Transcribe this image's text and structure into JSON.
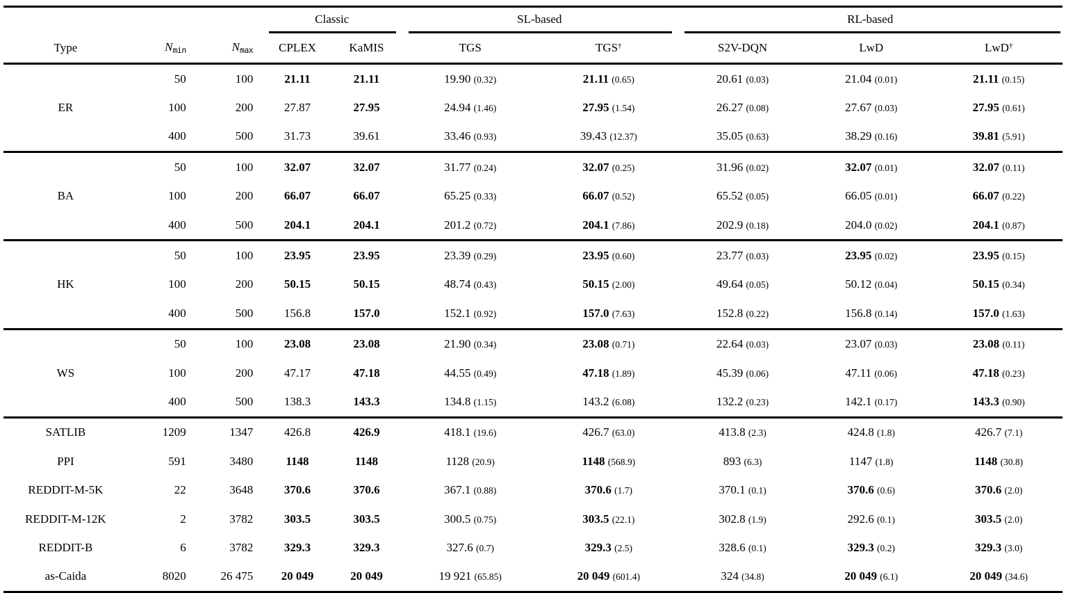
{
  "table": {
    "groups": [
      {
        "label": "Classic"
      },
      {
        "label": "SL-based"
      },
      {
        "label": "RL-based"
      }
    ],
    "headers": {
      "type": "Type",
      "nmin": {
        "base": "N",
        "sub": "min"
      },
      "nmax": {
        "base": "N",
        "sub": "max"
      }
    },
    "method_headers": [
      {
        "label": "CPLEX"
      },
      {
        "label": "KaMIS"
      },
      {
        "label": "TGS"
      },
      {
        "label": "TGS",
        "sup": "†"
      },
      {
        "label": "S2V-DQN"
      },
      {
        "label": "LwD"
      },
      {
        "label": "LwD",
        "sup": "†"
      }
    ],
    "method_keys": [
      "cplex",
      "kamis",
      "tgs",
      "tgs-dagger",
      "s2v-dqn",
      "lwd",
      "lwd-dagger"
    ],
    "sections": [
      {
        "label": "ER",
        "rows": [
          {
            "nmin": "50",
            "nmax": "100",
            "cells": [
              {
                "v": "21.11",
                "b": true
              },
              {
                "v": "21.11",
                "b": true
              },
              {
                "v": "19.90",
                "s": "0.32"
              },
              {
                "v": "21.11",
                "s": "0.65",
                "b": true
              },
              {
                "v": "20.61",
                "s": "0.03"
              },
              {
                "v": "21.04",
                "s": "0.01"
              },
              {
                "v": "21.11",
                "s": "0.15",
                "b": true
              }
            ]
          },
          {
            "nmin": "100",
            "nmax": "200",
            "cells": [
              {
                "v": "27.87"
              },
              {
                "v": "27.95",
                "b": true
              },
              {
                "v": "24.94",
                "s": "1.46"
              },
              {
                "v": "27.95",
                "s": "1.54",
                "b": true
              },
              {
                "v": "26.27",
                "s": "0.08"
              },
              {
                "v": "27.67",
                "s": "0.03"
              },
              {
                "v": "27.95",
                "s": "0.61",
                "b": true
              }
            ]
          },
          {
            "nmin": "400",
            "nmax": "500",
            "cells": [
              {
                "v": "31.73"
              },
              {
                "v": "39.61"
              },
              {
                "v": "33.46",
                "s": "0.93"
              },
              {
                "v": "39.43",
                "s": "12.37"
              },
              {
                "v": "35.05",
                "s": "0.63"
              },
              {
                "v": "38.29",
                "s": "0.16"
              },
              {
                "v": "39.81",
                "s": "5.91",
                "b": true
              }
            ]
          }
        ]
      },
      {
        "label": "BA",
        "rows": [
          {
            "nmin": "50",
            "nmax": "100",
            "cells": [
              {
                "v": "32.07",
                "b": true
              },
              {
                "v": "32.07",
                "b": true
              },
              {
                "v": "31.77",
                "s": "0.24"
              },
              {
                "v": "32.07",
                "s": "0.25",
                "b": true
              },
              {
                "v": "31.96",
                "s": "0.02"
              },
              {
                "v": "32.07",
                "s": "0.01",
                "b": true
              },
              {
                "v": "32.07",
                "s": "0.11",
                "b": true
              }
            ]
          },
          {
            "nmin": "100",
            "nmax": "200",
            "cells": [
              {
                "v": "66.07",
                "b": true
              },
              {
                "v": "66.07",
                "b": true
              },
              {
                "v": "65.25",
                "s": "0.33"
              },
              {
                "v": "66.07",
                "s": "0.52",
                "b": true
              },
              {
                "v": "65.52",
                "s": "0.05"
              },
              {
                "v": "66.05",
                "s": "0.01"
              },
              {
                "v": "66.07",
                "s": "0.22",
                "b": true
              }
            ]
          },
          {
            "nmin": "400",
            "nmax": "500",
            "cells": [
              {
                "v": "204.1",
                "b": true
              },
              {
                "v": "204.1",
                "b": true
              },
              {
                "v": "201.2",
                "s": "0.72"
              },
              {
                "v": "204.1",
                "s": "7.86",
                "b": true
              },
              {
                "v": "202.9",
                "s": "0.18"
              },
              {
                "v": "204.0",
                "s": "0.02"
              },
              {
                "v": "204.1",
                "s": "0.87",
                "b": true
              }
            ]
          }
        ]
      },
      {
        "label": "HK",
        "rows": [
          {
            "nmin": "50",
            "nmax": "100",
            "cells": [
              {
                "v": "23.95",
                "b": true
              },
              {
                "v": "23.95",
                "b": true
              },
              {
                "v": "23.39",
                "s": "0.29"
              },
              {
                "v": "23.95",
                "s": "0.60",
                "b": true
              },
              {
                "v": "23.77",
                "s": "0.03"
              },
              {
                "v": "23.95",
                "s": "0.02",
                "b": true
              },
              {
                "v": "23.95",
                "s": "0.15",
                "b": true
              }
            ]
          },
          {
            "nmin": "100",
            "nmax": "200",
            "cells": [
              {
                "v": "50.15",
                "b": true
              },
              {
                "v": "50.15",
                "b": true
              },
              {
                "v": "48.74",
                "s": "0.43"
              },
              {
                "v": "50.15",
                "s": "2.00",
                "b": true
              },
              {
                "v": "49.64",
                "s": "0.05"
              },
              {
                "v": "50.12",
                "s": "0.04"
              },
              {
                "v": "50.15",
                "s": "0.34",
                "b": true
              }
            ]
          },
          {
            "nmin": "400",
            "nmax": "500",
            "cells": [
              {
                "v": "156.8"
              },
              {
                "v": "157.0",
                "b": true
              },
              {
                "v": "152.1",
                "s": "0.92"
              },
              {
                "v": "157.0",
                "s": "7.63",
                "b": true
              },
              {
                "v": "152.8",
                "s": "0.22"
              },
              {
                "v": "156.8",
                "s": "0.14"
              },
              {
                "v": "157.0",
                "s": "1.63",
                "b": true
              }
            ]
          }
        ]
      },
      {
        "label": "WS",
        "rows": [
          {
            "nmin": "50",
            "nmax": "100",
            "cells": [
              {
                "v": "23.08",
                "b": true
              },
              {
                "v": "23.08",
                "b": true
              },
              {
                "v": "21.90",
                "s": "0.34"
              },
              {
                "v": "23.08",
                "s": "0.71",
                "b": true
              },
              {
                "v": "22.64",
                "s": "0.03"
              },
              {
                "v": "23.07",
                "s": "0.03"
              },
              {
                "v": "23.08",
                "s": "0.11",
                "b": true
              }
            ]
          },
          {
            "nmin": "100",
            "nmax": "200",
            "cells": [
              {
                "v": "47.17"
              },
              {
                "v": "47.18",
                "b": true
              },
              {
                "v": "44.55",
                "s": "0.49"
              },
              {
                "v": "47.18",
                "s": "1.89",
                "b": true
              },
              {
                "v": "45.39",
                "s": "0.06"
              },
              {
                "v": "47.11",
                "s": "0.06"
              },
              {
                "v": "47.18",
                "s": "0.23",
                "b": true
              }
            ]
          },
          {
            "nmin": "400",
            "nmax": "500",
            "cells": [
              {
                "v": "138.3"
              },
              {
                "v": "143.3",
                "b": true
              },
              {
                "v": "134.8",
                "s": "1.15"
              },
              {
                "v": "143.2",
                "s": "6.08"
              },
              {
                "v": "132.2",
                "s": "0.23"
              },
              {
                "v": "142.1",
                "s": "0.17"
              },
              {
                "v": "143.3",
                "s": "0.90",
                "b": true
              }
            ]
          }
        ]
      },
      {
        "label": null,
        "rows": [
          {
            "type": "SATLIB",
            "nmin": "1209",
            "nmax": "1347",
            "cells": [
              {
                "v": "426.8"
              },
              {
                "v": "426.9",
                "b": true
              },
              {
                "v": "418.1",
                "s": "19.6"
              },
              {
                "v": "426.7",
                "s": "63.0"
              },
              {
                "v": "413.8",
                "s": "2.3"
              },
              {
                "v": "424.8",
                "s": "1.8"
              },
              {
                "v": "426.7",
                "s": "7.1"
              }
            ]
          },
          {
            "type": "PPI",
            "nmin": "591",
            "nmax": "3480",
            "cells": [
              {
                "v": "1148",
                "b": true
              },
              {
                "v": "1148",
                "b": true
              },
              {
                "v": "1128",
                "s": "20.9"
              },
              {
                "v": "1148",
                "s": "568.9",
                "b": true
              },
              {
                "v": "893",
                "s": "6.3"
              },
              {
                "v": "1147",
                "s": "1.8"
              },
              {
                "v": "1148",
                "s": "30.8",
                "b": true
              }
            ]
          },
          {
            "type": "REDDIT-M-5K",
            "nmin": "22",
            "nmax": "3648",
            "cells": [
              {
                "v": "370.6",
                "b": true
              },
              {
                "v": "370.6",
                "b": true
              },
              {
                "v": "367.1",
                "s": "0.88"
              },
              {
                "v": "370.6",
                "s": "1.7",
                "b": true
              },
              {
                "v": "370.1",
                "s": "0.1"
              },
              {
                "v": "370.6",
                "s": "0.6",
                "b": true
              },
              {
                "v": "370.6",
                "s": "2.0",
                "b": true
              }
            ]
          },
          {
            "type": "REDDIT-M-12K",
            "nmin": "2",
            "nmax": "3782",
            "cells": [
              {
                "v": "303.5",
                "b": true
              },
              {
                "v": "303.5",
                "b": true
              },
              {
                "v": "300.5",
                "s": "0.75"
              },
              {
                "v": "303.5",
                "s": "22.1",
                "b": true
              },
              {
                "v": "302.8",
                "s": "1.9"
              },
              {
                "v": "292.6",
                "s": "0.1"
              },
              {
                "v": "303.5",
                "s": "2.0",
                "b": true
              }
            ]
          },
          {
            "type": "REDDIT-B",
            "nmin": "6",
            "nmax": "3782",
            "cells": [
              {
                "v": "329.3",
                "b": true
              },
              {
                "v": "329.3",
                "b": true
              },
              {
                "v": "327.6",
                "s": "0.7"
              },
              {
                "v": "329.3",
                "s": "2.5",
                "b": true
              },
              {
                "v": "328.6",
                "s": "0.1"
              },
              {
                "v": "329.3",
                "s": "0.2",
                "b": true
              },
              {
                "v": "329.3",
                "s": "3.0",
                "b": true
              }
            ]
          },
          {
            "type": "as-Caida",
            "nmin": "8020",
            "nmax": "26 475",
            "cells": [
              {
                "v": "20 049",
                "b": true
              },
              {
                "v": "20 049",
                "b": true
              },
              {
                "v": "19 921",
                "s": "65.85"
              },
              {
                "v": "20 049",
                "s": "601.4",
                "b": true
              },
              {
                "v": "324",
                "s": "34.8"
              },
              {
                "v": "20 049",
                "s": "6.1",
                "b": true
              },
              {
                "v": "20 049",
                "s": "34.6",
                "b": true
              }
            ]
          }
        ]
      }
    ]
  }
}
